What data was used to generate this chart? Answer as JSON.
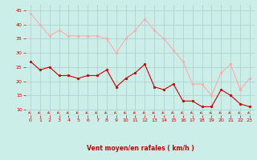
{
  "x": [
    0,
    1,
    2,
    3,
    4,
    5,
    6,
    7,
    8,
    9,
    10,
    11,
    12,
    13,
    14,
    15,
    16,
    17,
    18,
    19,
    20,
    21,
    22,
    23
  ],
  "vent_moyen": [
    27,
    24,
    25,
    22,
    22,
    21,
    22,
    22,
    24,
    18,
    21,
    23,
    26,
    18,
    17,
    19,
    13,
    13,
    11,
    11,
    17,
    15,
    12,
    11
  ],
  "rafales": [
    44,
    40,
    36,
    38,
    36,
    36,
    36,
    36,
    35,
    30,
    35,
    38,
    42,
    38,
    35,
    31,
    27,
    19,
    19,
    15,
    23,
    26,
    17,
    21
  ],
  "color_moyen": "#cc0000",
  "color_rafales": "#ffaaaa",
  "bg_color": "#cceee8",
  "grid_color": "#aacccc",
  "xlabel": "Vent moyen/en rafales ( km/h )",
  "xlabel_color": "#cc0000",
  "arrow_color": "#dd2222",
  "ylim": [
    8,
    47
  ],
  "yticks": [
    10,
    15,
    20,
    25,
    30,
    35,
    40,
    45
  ],
  "xticks": [
    0,
    1,
    2,
    3,
    4,
    5,
    6,
    7,
    8,
    9,
    10,
    11,
    12,
    13,
    14,
    15,
    16,
    17,
    18,
    19,
    20,
    21,
    22,
    23
  ]
}
